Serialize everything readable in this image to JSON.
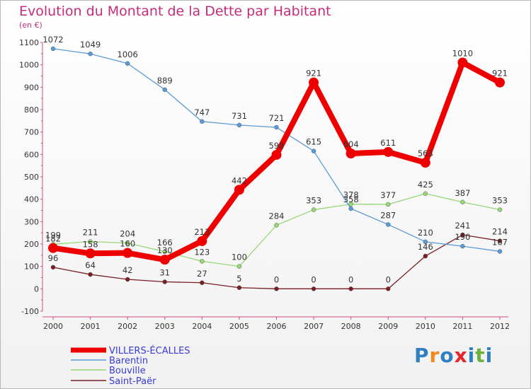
{
  "chart_data": {
    "type": "line",
    "title": "Evolution du Montant de la Dette par Habitant",
    "subtitle": "(en €)",
    "xlabel": "",
    "ylabel": "",
    "categories": [
      "2000",
      "2001",
      "2002",
      "2003",
      "2004",
      "2005",
      "2006",
      "2007",
      "2008",
      "2009",
      "2010",
      "2011",
      "2012"
    ],
    "ylim": [
      -100,
      1100
    ],
    "yticks": [
      -100,
      0,
      100,
      200,
      300,
      400,
      500,
      600,
      700,
      800,
      900,
      1000,
      1100
    ],
    "grid": false,
    "legend_position": "bottom-left",
    "series": [
      {
        "name": "VILLERS-ÉCALLES",
        "color": "#ee0000",
        "values": [
          182,
          158,
          160,
          130,
          213,
          442,
          598,
          921,
          604,
          611,
          563,
          1010,
          921
        ]
      },
      {
        "name": "Barentin",
        "color": "#5b9bd5",
        "values": [
          1072,
          1049,
          1006,
          889,
          747,
          731,
          721,
          615,
          358,
          287,
          210,
          190,
          167
        ]
      },
      {
        "name": "Bouville",
        "color": "#97d776",
        "values": [
          199,
          211,
          204,
          166,
          123,
          100,
          284,
          353,
          378,
          377,
          425,
          387,
          353
        ]
      },
      {
        "name": "Saint-Paër",
        "color": "#7a1f24",
        "values": [
          96,
          64,
          42,
          31,
          27,
          5,
          0,
          0,
          0,
          0,
          146,
          241,
          214
        ]
      }
    ]
  },
  "logo": {
    "text": "Proxiti",
    "colors": [
      "#2f7fc1",
      "#f08a1c",
      "#2f7fc1",
      "#e5262d",
      "#2f7fc1",
      "#6ab23e",
      "#2f7fc1"
    ]
  }
}
